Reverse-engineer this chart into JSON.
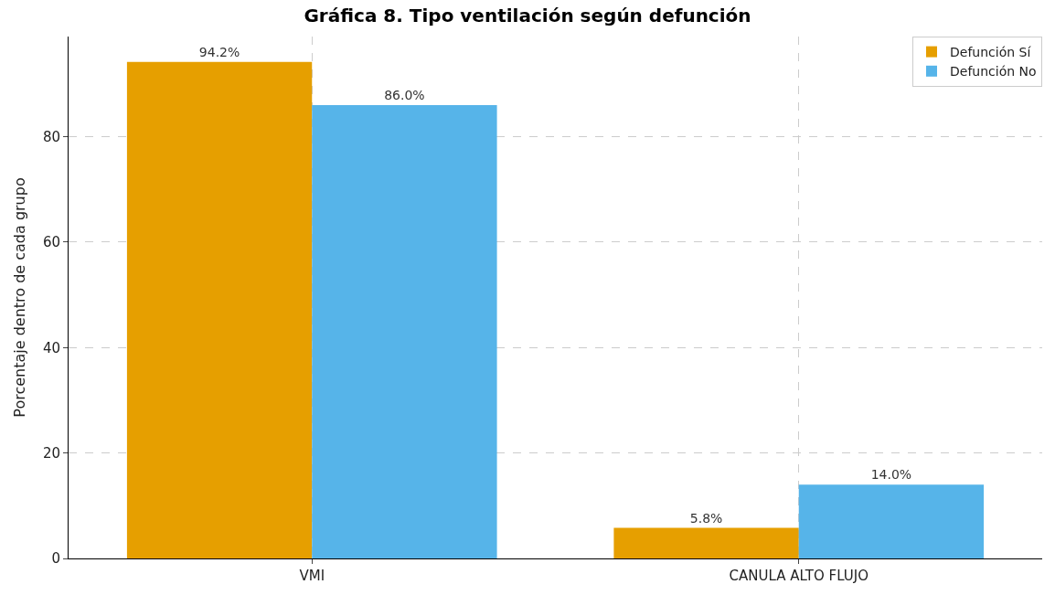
{
  "chart_data": {
    "type": "bar",
    "title": "Gráfica 8. Tipo ventilación según defunción",
    "ylabel": "Porcentaje dentro de cada grupo",
    "categories": [
      "VMI",
      "CANULA ALTO FLUJO"
    ],
    "series": [
      {
        "name": "Defunción Sí",
        "color": "#e69f00",
        "values": [
          94.2,
          5.8
        ],
        "value_labels": [
          "94.2%",
          "5.8%"
        ]
      },
      {
        "name": "Defunción No",
        "color": "#56b4e9",
        "values": [
          86.0,
          14.0
        ],
        "value_labels": [
          "86.0%",
          "14.0%"
        ]
      }
    ],
    "ylim": [
      0,
      99
    ],
    "yticks": [
      0,
      20,
      40,
      60,
      80
    ],
    "grid": true,
    "legend": "top right"
  }
}
